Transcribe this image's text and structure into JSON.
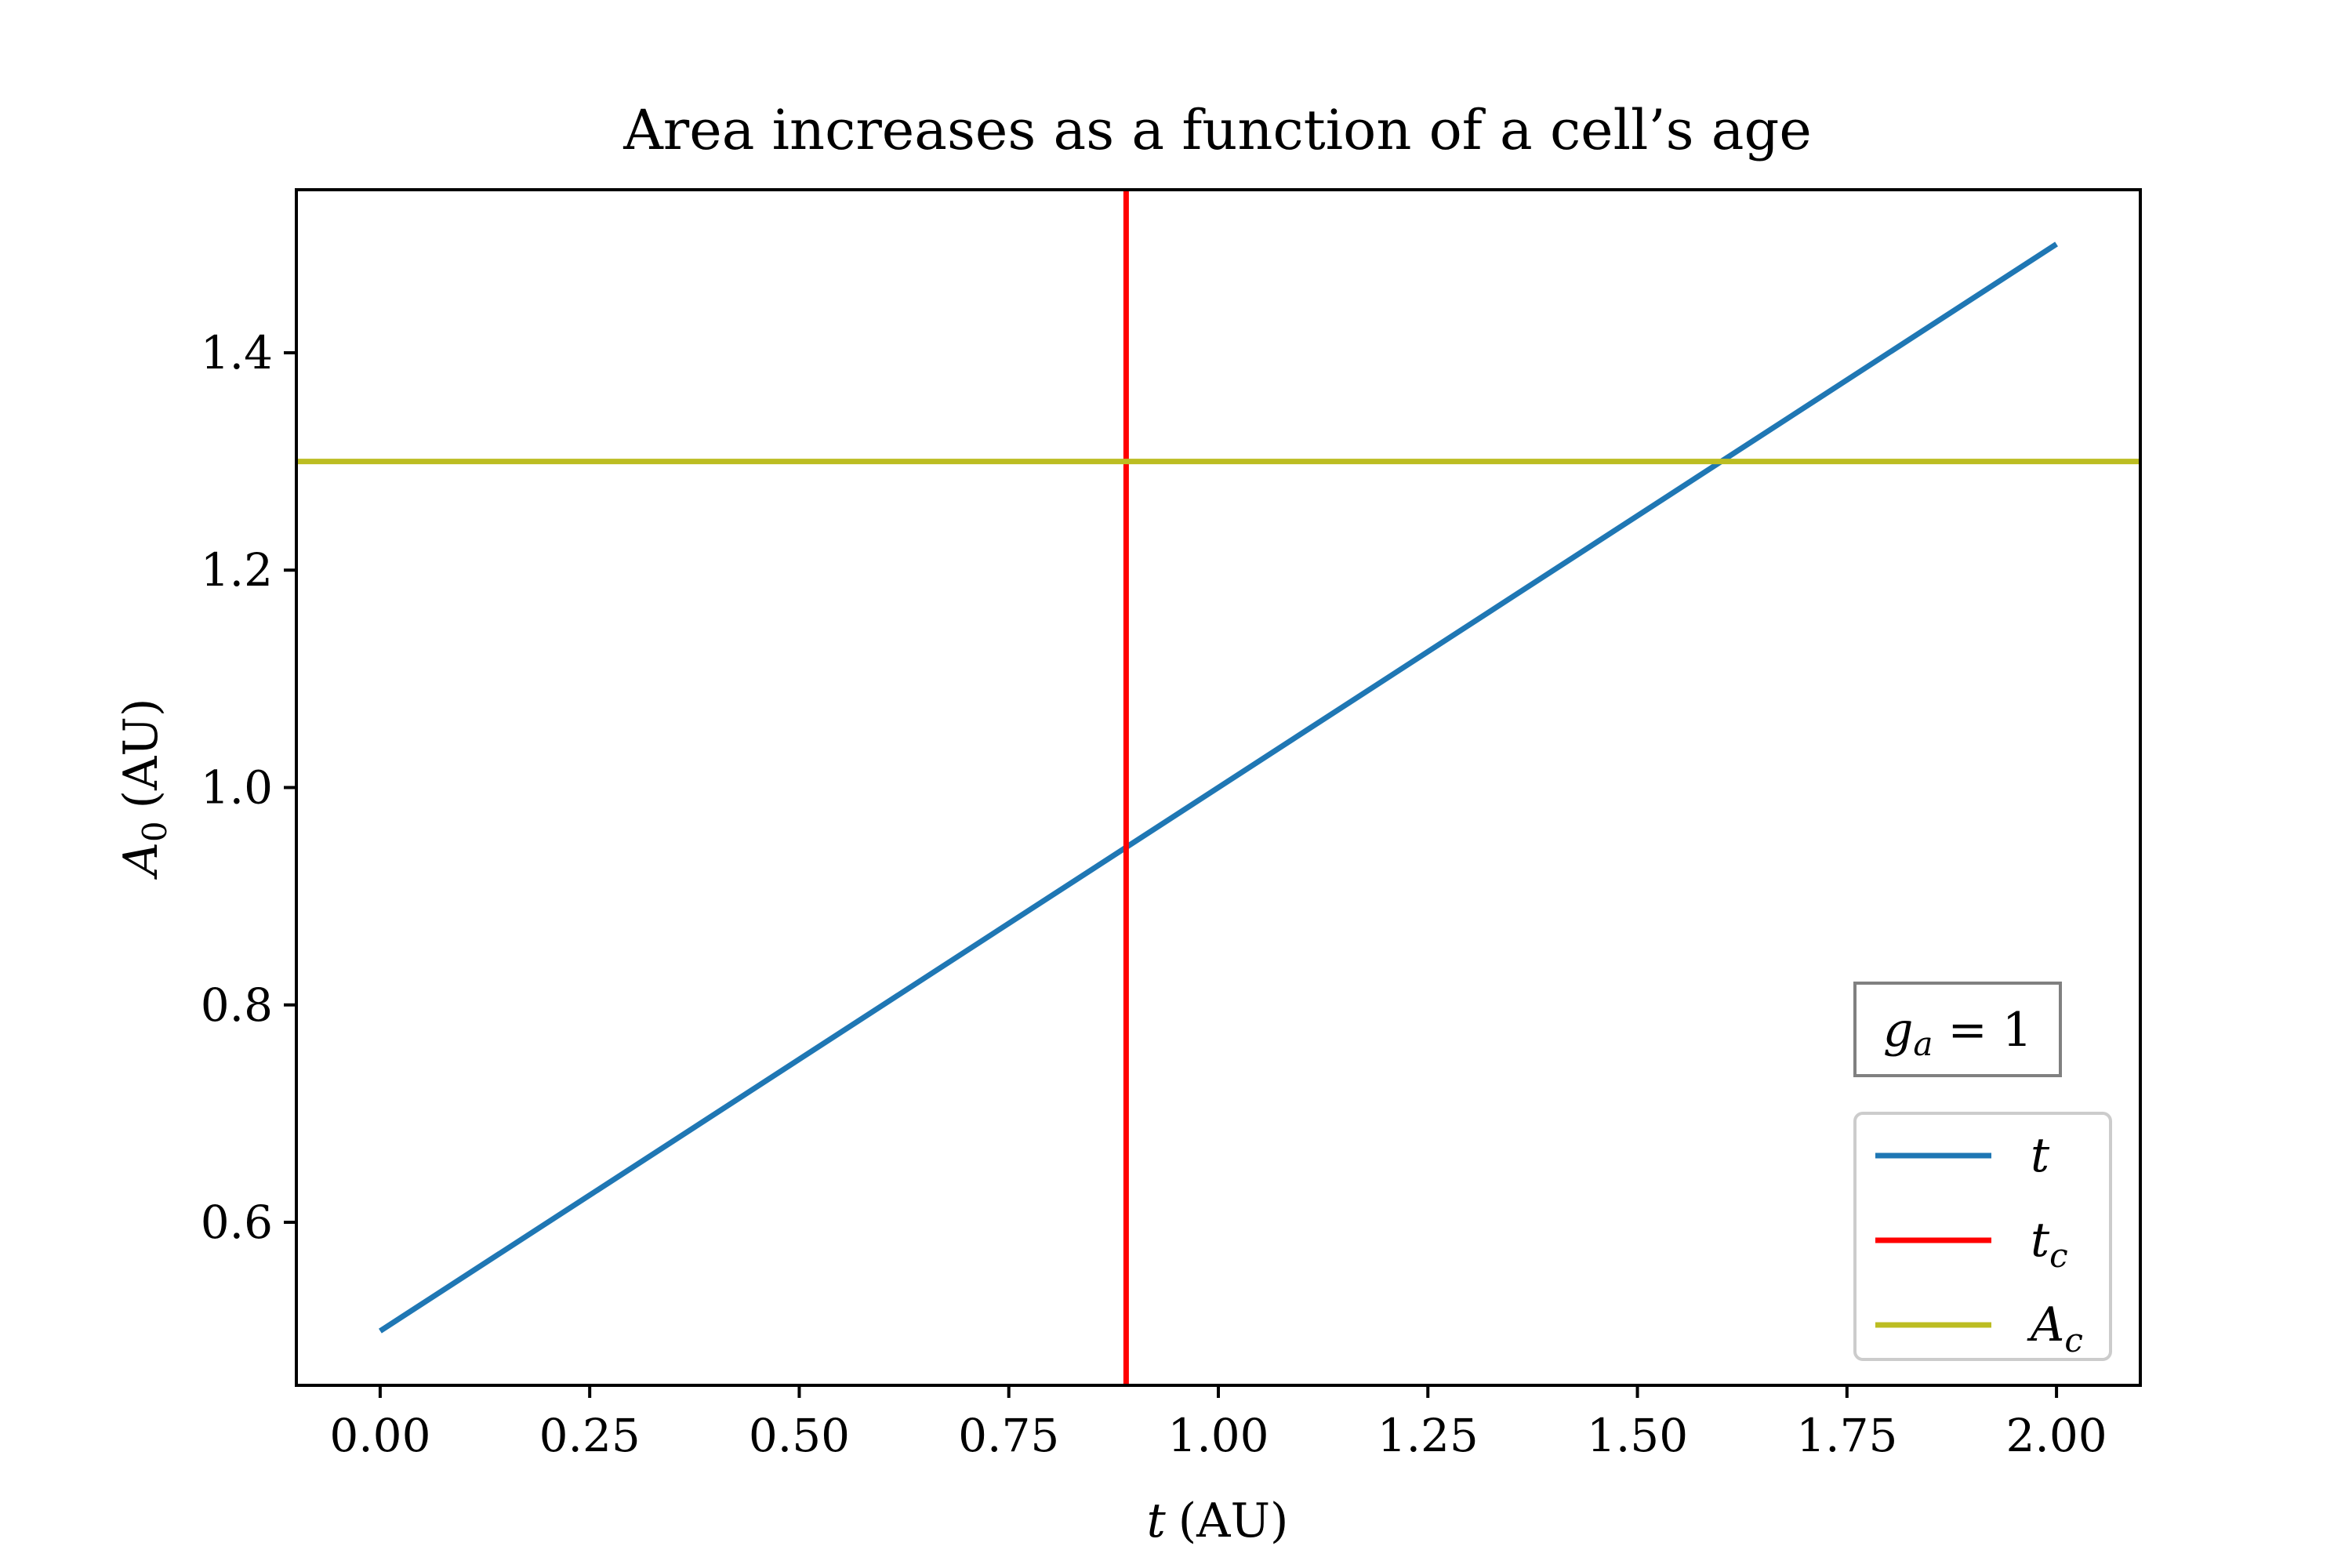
{
  "chart_data": {
    "type": "line",
    "title": "Area increases as a function of a cell’s age",
    "xlabel": {
      "var": "t",
      "unit": "(AU)"
    },
    "ylabel": {
      "var": "A",
      "sub": "0",
      "unit": "(AU)"
    },
    "xlim": [
      -0.1,
      2.1
    ],
    "ylim": [
      0.45,
      1.55
    ],
    "x_ticks": [
      0.0,
      0.25,
      0.5,
      0.75,
      1.0,
      1.25,
      1.5,
      1.75,
      2.0
    ],
    "x_tick_labels": [
      "0.00",
      "0.25",
      "0.50",
      "0.75",
      "1.00",
      "1.25",
      "1.50",
      "1.75",
      "2.00"
    ],
    "y_ticks": [
      0.6,
      0.8,
      1.0,
      1.2,
      1.4
    ],
    "y_tick_labels": [
      "0.6",
      "0.8",
      "1.0",
      "1.2",
      "1.4"
    ],
    "grid": false,
    "legend_position": "lower-right",
    "series": [
      {
        "name": "t",
        "name_base": "t",
        "name_sub": "",
        "kind": "line",
        "color": "#1f77b4",
        "x": [
          0.0,
          2.0
        ],
        "y": [
          0.5,
          1.5
        ]
      },
      {
        "name": "t_c",
        "name_base": "t",
        "name_sub": "c",
        "kind": "vline",
        "color": "#ff0000",
        "x": 0.89
      },
      {
        "name": "A_c",
        "name_base": "A",
        "name_sub": "c",
        "kind": "hline",
        "color": "#bcbd22",
        "y": 1.3
      }
    ],
    "annotation": {
      "var": "g",
      "sub": "a",
      "text": " = 1"
    }
  }
}
